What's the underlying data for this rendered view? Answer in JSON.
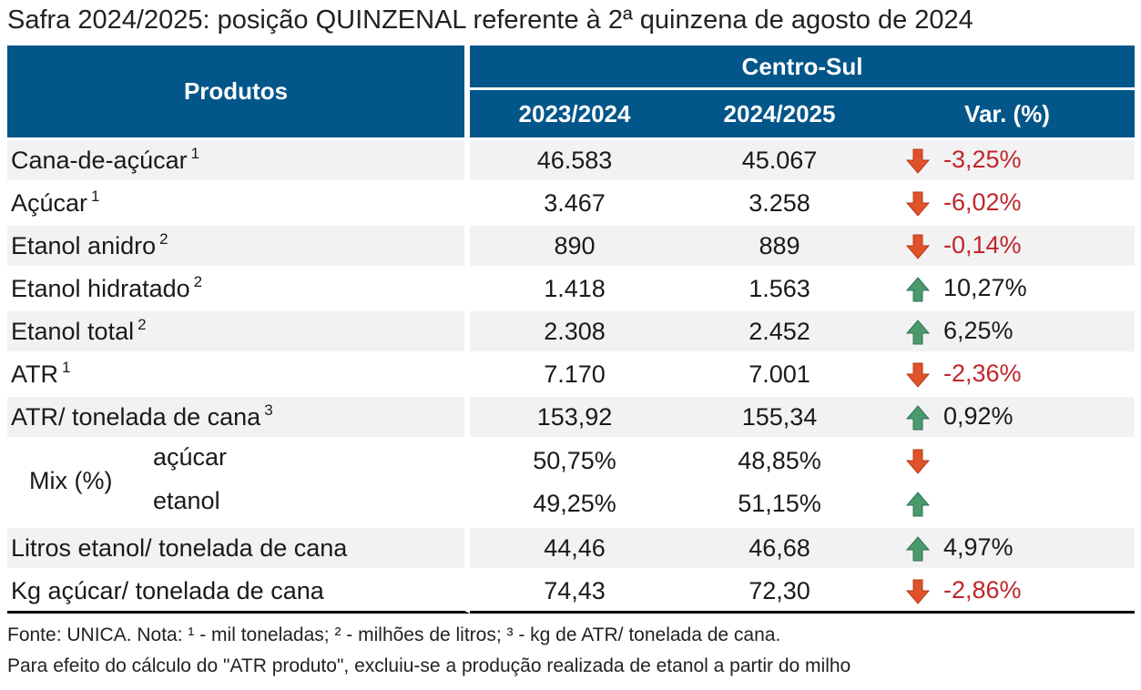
{
  "title": "Safra 2024/2025: posição QUINZENAL referente à 2ª quinzena de agosto de 2024",
  "header": {
    "produtos": "Produtos",
    "region": "Centro-Sul",
    "col1": "2023/2024",
    "col2": "2024/2025",
    "col3": "Var. (%)"
  },
  "colors": {
    "header_bg": "#03568a",
    "neg": "#c0262b",
    "arrow_down": "#e0522a",
    "arrow_up": "#4a9a6e",
    "shade": "#f2f2f2"
  },
  "rows": [
    {
      "label": "Cana-de-açúcar",
      "sup": "1",
      "v1": "46.583",
      "v2": "45.067",
      "dir": "down",
      "var": "-3,25%"
    },
    {
      "label": "Açúcar",
      "sup": "1",
      "v1": "3.467",
      "v2": "3.258",
      "dir": "down",
      "var": "-6,02%"
    },
    {
      "label": "Etanol anidro",
      "sup": "2",
      "v1": "890",
      "v2": "889",
      "dir": "down",
      "var": "-0,14%"
    },
    {
      "label": "Etanol hidratado",
      "sup": "2",
      "v1": "1.418",
      "v2": "1.563",
      "dir": "up",
      "var": "10,27%"
    },
    {
      "label": "Etanol total",
      "sup": "2",
      "v1": "2.308",
      "v2": "2.452",
      "dir": "up",
      "var": "6,25%"
    },
    {
      "label": "ATR",
      "sup": "1",
      "v1": "7.170",
      "v2": "7.001",
      "dir": "down",
      "var": "-2,36%"
    },
    {
      "label": "ATR/ tonelada de cana",
      "sup": "3",
      "v1": "153,92",
      "v2": "155,34",
      "dir": "up",
      "var": "0,92%"
    }
  ],
  "mix": {
    "label": "Mix (%)",
    "acucar": {
      "label": "açúcar",
      "v1": "50,75%",
      "v2": "48,85%",
      "dir": "down"
    },
    "etanol": {
      "label": "etanol",
      "v1": "49,25%",
      "v2": "51,15%",
      "dir": "up"
    }
  },
  "rows2": [
    {
      "label": "Litros etanol/ tonelada de cana",
      "v1": "44,46",
      "v2": "46,68",
      "dir": "up",
      "var": "4,97%"
    },
    {
      "label": "Kg açúcar/ tonelada de cana",
      "v1": "74,43",
      "v2": "72,30",
      "dir": "down",
      "var": "-2,86%"
    }
  ],
  "footnote1": "Fonte: UNICA. Nota: ¹ - mil toneladas; ² - milhões de litros; ³ - kg de ATR/ tonelada de cana.",
  "footnote2": "Para efeito do cálculo do \"ATR produto\", excluiu-se a produção realizada de etanol a partir do milho"
}
